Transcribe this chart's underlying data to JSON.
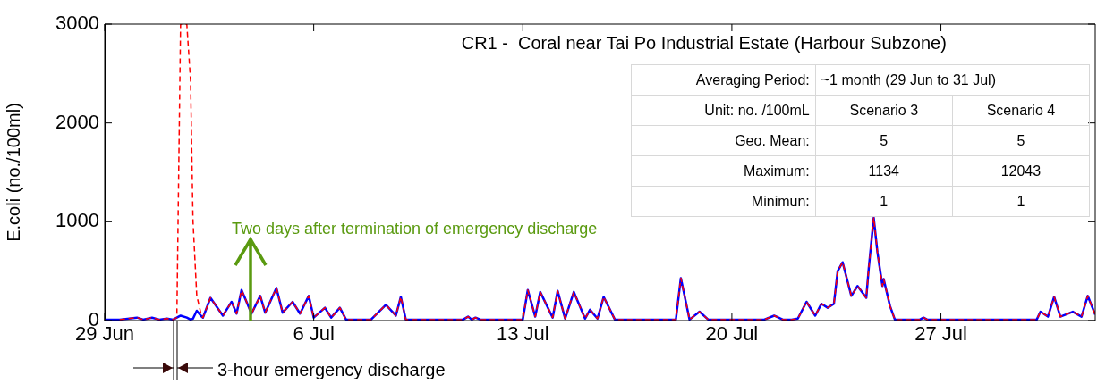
{
  "chart_data": {
    "type": "line",
    "title": "CR1 -  Coral near Tai Po Industrial Estate (Harbour Subzone)",
    "ylabel": "E.coli (no./100ml)",
    "annotations": [
      "Two days after termination of emergency discharge",
      "3-hour emergency discharge",
      "Averaging Period:",
      "~1 month (29 Jun to 31 Jul)",
      "Unit: no. /100mL",
      "Scenario 3",
      "Scenario 4",
      "Geo. Mean:",
      "5",
      "5",
      "Maximum:",
      "1134",
      "12043",
      "Minimun:",
      "1",
      "1"
    ],
    "x": [
      "--06-29T00:00",
      "--06-29T12:00",
      "--06-30T02:00",
      "--06-30T07:00",
      "--06-30T14:00",
      "--06-30T20:00",
      "--07-01T02:00",
      "--07-01T07:00",
      "--07-01T10:00",
      "--07-01T13:00",
      "--07-01T18:00",
      "--07-01T21:00",
      "--07-01T23:00",
      "--07-02T02:00",
      "--07-02T06:00",
      "--07-02T07:00",
      "--07-02T13:00",
      "--07-02T23:00",
      "--07-03T06:00",
      "--07-03T10:00",
      "--07-03T14:00",
      "--07-03T22:00",
      "--07-04T05:00",
      "--07-04T09:00",
      "--07-04T18:00",
      "--07-04T23:00",
      "--07-05T07:00",
      "--07-05T13:00",
      "--07-05T20:00",
      "--07-06T00:00",
      "--07-06T09:00",
      "--07-06T14:00",
      "--07-06T21:00",
      "--07-07T02:00",
      "--07-07T22:00",
      "--07-08T10:00",
      "--07-08T18:00",
      "--07-08T22:00",
      "--07-09T02:00",
      "--07-11T00:00",
      "--07-11T04:00",
      "--07-11T07:00",
      "--07-11T10:00",
      "--07-11T14:00",
      "--07-13T00:00",
      "--07-13T04:00",
      "--07-13T10:00",
      "--07-13T14:00",
      "--07-14T00:00",
      "--07-14T04:00",
      "--07-14T10:00",
      "--07-14T17:00",
      "--07-15T02:00",
      "--07-15T06:00",
      "--07-15T12:00",
      "--07-15T17:00",
      "--07-16T02:00",
      "--07-18T03:00",
      "--07-18T07:00",
      "--07-18T14:00",
      "--07-18T22:00",
      "--07-19T05:00",
      "--07-21T02:00",
      "--07-21T10:00",
      "--07-21T17:00",
      "--07-22T00:00",
      "--07-22T05:00",
      "--07-22T12:00",
      "--07-22T19:00",
      "--07-23T00:00",
      "--07-23T05:00",
      "--07-23T10:00",
      "--07-23T13:00",
      "--07-23T17:00",
      "--07-24T00:00",
      "--07-24T05:00",
      "--07-24T12:00",
      "--07-24T14:00",
      "--07-24T18:00",
      "--07-24T21:00",
      "--07-25T01:00",
      "--07-25T02:00",
      "--07-25T07:00",
      "--07-25T11:00",
      "--07-26T07:00",
      "--07-26T10:00",
      "--07-26T13:00",
      "--07-30T05:00",
      "--07-30T08:00",
      "--07-30T14:00",
      "--07-30T19:00",
      "--07-31T00:00",
      "--07-31T10:00",
      "--07-31T17:00",
      "--07-31T22:00",
      "--08-01T04:00"
    ],
    "series": [
      {
        "color": "#0000ff",
        "line_style": "solid",
        "values": [
          10,
          10,
          30,
          10,
          30,
          10,
          20,
          10,
          30,
          50,
          30,
          10,
          20,
          100,
          40,
          30,
          230,
          50,
          190,
          70,
          310,
          70,
          250,
          80,
          330,
          80,
          190,
          70,
          250,
          30,
          130,
          30,
          130,
          10,
          10,
          160,
          50,
          240,
          10,
          10,
          40,
          10,
          30,
          10,
          10,
          310,
          40,
          290,
          30,
          300,
          20,
          290,
          20,
          110,
          20,
          240,
          10,
          10,
          430,
          10,
          90,
          10,
          10,
          50,
          10,
          10,
          20,
          190,
          50,
          170,
          130,
          170,
          500,
          590,
          250,
          350,
          230,
          530,
          1040,
          690,
          350,
          420,
          150,
          10,
          10,
          30,
          10,
          10,
          90,
          40,
          240,
          40,
          90,
          40,
          250,
          60
        ]
      },
      {
        "color": "#ff0000",
        "line_style": "dashed",
        "values": [
          null,
          10,
          30,
          10,
          30,
          10,
          20,
          10,
          30,
          3000,
          3000,
          2430,
          1000,
          250,
          40,
          30,
          230,
          50,
          190,
          70,
          310,
          70,
          250,
          80,
          330,
          80,
          190,
          70,
          250,
          30,
          130,
          30,
          130,
          10,
          10,
          160,
          50,
          240,
          10,
          10,
          40,
          10,
          30,
          10,
          10,
          310,
          40,
          290,
          30,
          300,
          20,
          290,
          20,
          110,
          20,
          240,
          10,
          10,
          430,
          10,
          90,
          10,
          10,
          50,
          10,
          10,
          20,
          190,
          50,
          170,
          130,
          170,
          500,
          590,
          250,
          350,
          230,
          530,
          1040,
          690,
          350,
          420,
          150,
          10,
          10,
          30,
          10,
          10,
          90,
          40,
          240,
          40,
          90,
          40,
          250,
          60
        ]
      }
    ],
    "xlim": [
      "--06-29T00:00",
      "--08-01T04:00"
    ],
    "xticks": [
      {
        "value": "--06-29",
        "label": "29 Jun"
      },
      {
        "value": "--07-06",
        "label": "6 Jul"
      },
      {
        "value": "--07-13",
        "label": "13 Jul"
      },
      {
        "value": "--07-20",
        "label": "20 Jul"
      },
      {
        "value": "--07-27",
        "label": "27 Jul"
      }
    ],
    "ylim": [
      0,
      3000
    ],
    "yticks": [
      0,
      1000,
      2000,
      3000
    ]
  }
}
